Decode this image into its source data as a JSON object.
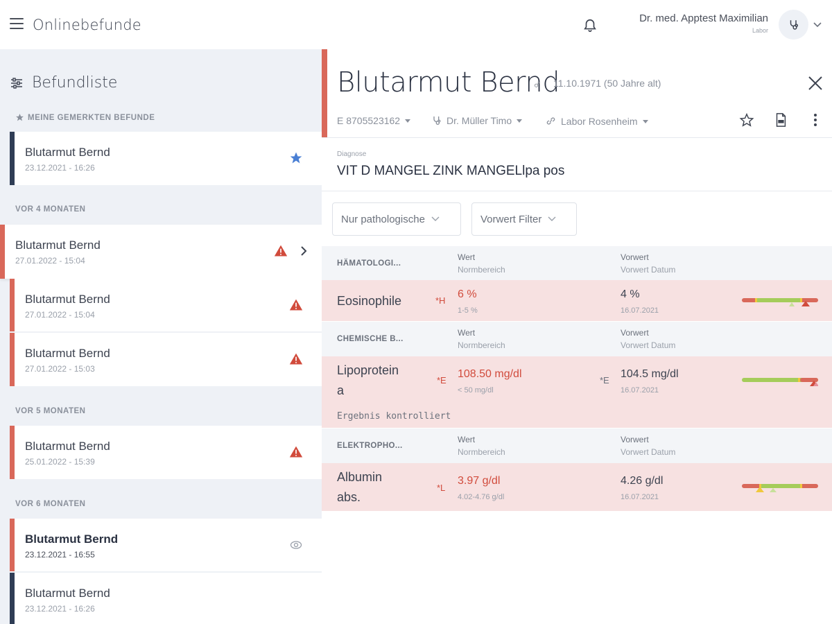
{
  "app": {
    "title": "Onlinebefunde"
  },
  "user": {
    "name": "Dr. med. Apptest Maximilian",
    "role": "Labor"
  },
  "sidebar": {
    "header": "Befundliste",
    "sections": {
      "starred": "MEINE GEMERKTEN BEFUNDE",
      "m4": "VOR 4 MONATEN",
      "m5": "VOR 5 MONATEN",
      "m6": "VOR 6 MONATEN"
    },
    "items": [
      {
        "name": "Blutarmut Bernd",
        "date": "23.12.2021 - 16:26"
      },
      {
        "name": "Blutarmut Bernd",
        "date": "27.01.2022 - 15:04"
      },
      {
        "name": "Blutarmut Bernd",
        "date": "27.01.2022 - 15:04"
      },
      {
        "name": "Blutarmut Bernd",
        "date": "27.01.2022 - 15:03"
      },
      {
        "name": "Blutarmut Bernd",
        "date": "25.01.2022 - 15:39"
      },
      {
        "name": "Blutarmut Bernd",
        "date": "23.12.2021 - 16:55"
      },
      {
        "name": "Blutarmut Bernd",
        "date": "23.12.2021 - 16:26"
      }
    ]
  },
  "patient": {
    "name": "Blutarmut Bernd",
    "gender_symbol": "♂",
    "dob": "11.10.1971 (50 Jahre alt)",
    "case_id": "E 8705523162",
    "doctor": "Dr. Müller Timo",
    "lab": "Labor Rosenheim"
  },
  "diagnosis": {
    "label": "Diagnose",
    "text": "VIT D MANGEL ZINK MANGELlpa pos"
  },
  "filters": {
    "pathologic": "Nur pathologische",
    "prev": "Vorwert Filter"
  },
  "columns": {
    "value": "Wert",
    "range": "Normbereich",
    "prev": "Vorwert",
    "prev_date": "Vorwert Datum"
  },
  "groups": [
    {
      "name": "HÄMATOLOGI...",
      "rows": [
        {
          "analyte": "Eosinophile",
          "flag": "*H",
          "value": "6 %",
          "range": "1-5 %",
          "prev": "4 %",
          "prev_date": "16.07.2021",
          "prev_flag": ""
        }
      ]
    },
    {
      "name": "CHEMISCHE B...",
      "rows": [
        {
          "analyte_l1": "Lipoprotein",
          "analyte_l2": "a",
          "flag": "*E",
          "value": "108.50 mg/dl",
          "range": "< 50 mg/dl",
          "prev": "104.5 mg/dl",
          "prev_date": "16.07.2021",
          "prev_flag": "*E",
          "note": "Ergebnis kontrolliert"
        }
      ]
    },
    {
      "name": "ELEKTROPHO...",
      "rows": [
        {
          "analyte_l1": "Albumin",
          "analyte_l2": "abs.",
          "flag": "*L",
          "value": "3.97 g/dl",
          "range": "4.02-4.76 g/dl",
          "prev": "4.26 g/dl",
          "prev_date": "16.07.2021",
          "prev_flag": ""
        }
      ]
    }
  ],
  "colors": {
    "accent_red": "#d9685a",
    "navy": "#2f3d55",
    "row_pink": "#f7e1e1",
    "gauge_green": "#a5cc5a",
    "gauge_red": "#d9685a",
    "gauge_yellow": "#f0c83c"
  }
}
